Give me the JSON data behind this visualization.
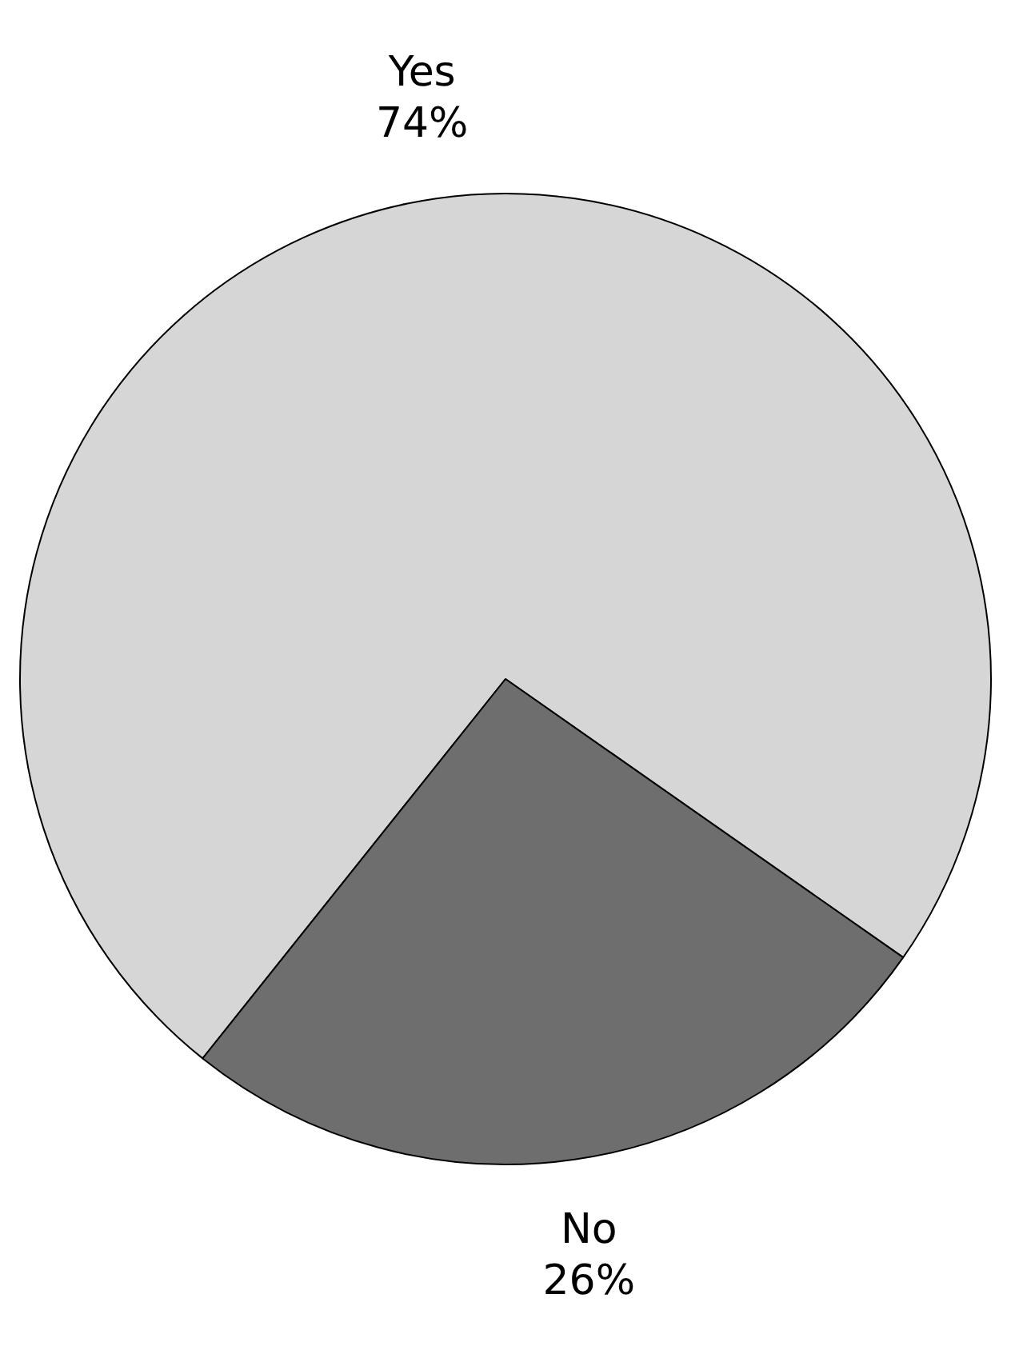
{
  "chart_data": {
    "type": "pie",
    "categories": [
      "Yes",
      "No"
    ],
    "values": [
      74,
      26
    ],
    "value_labels": [
      "74%",
      "26%"
    ],
    "colors": [
      "#d6d6d6",
      "#6e6e6e"
    ],
    "legend": false
  }
}
